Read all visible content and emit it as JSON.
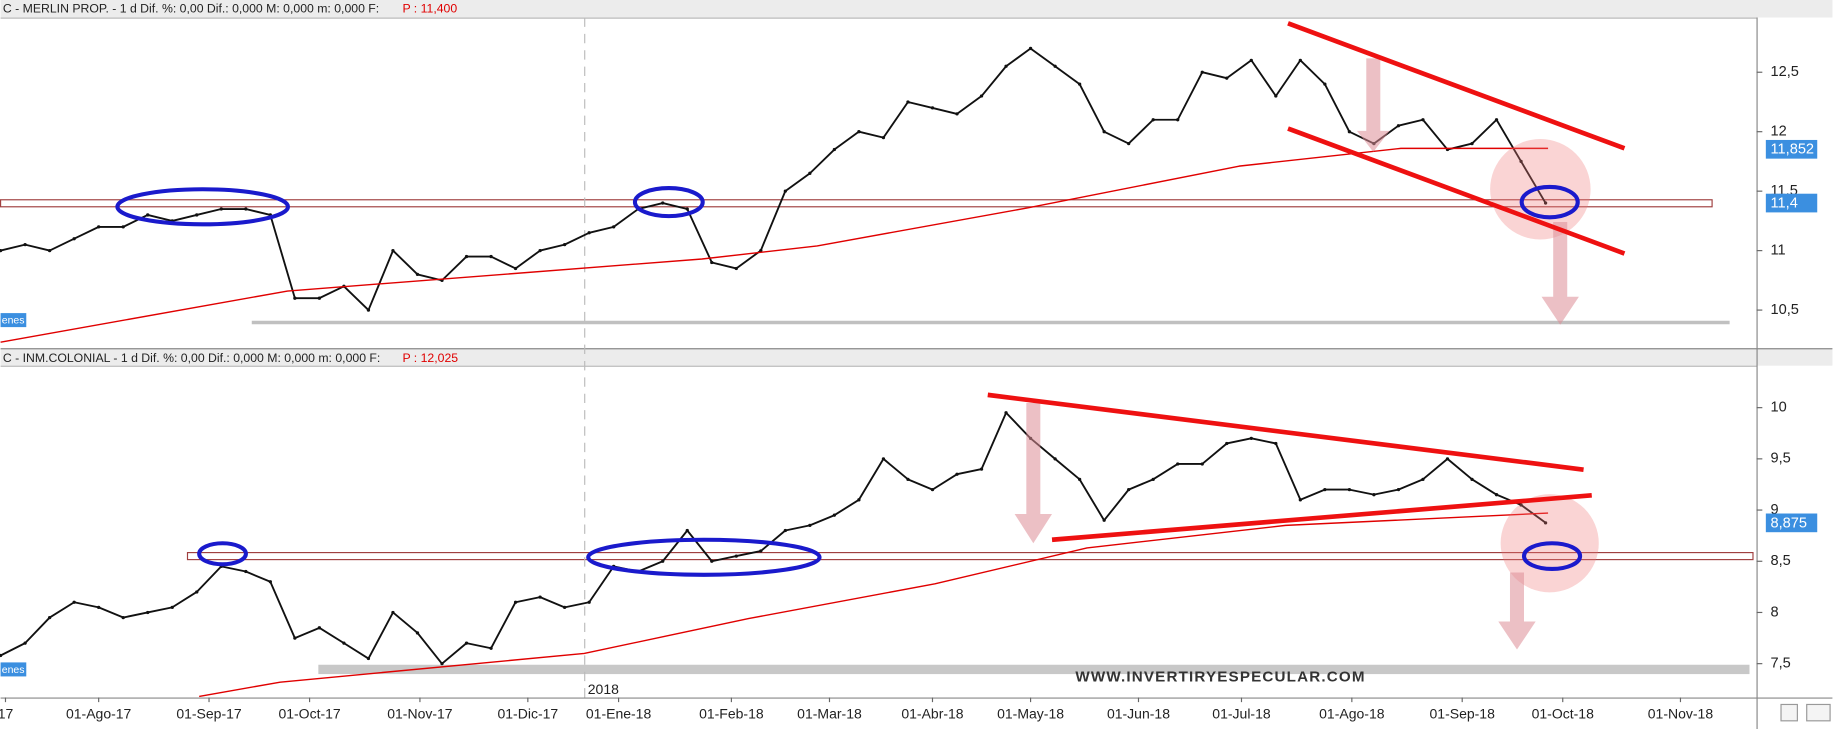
{
  "chart_data": [
    {
      "type": "line",
      "title": "C - MERLIN PROP. -  1 d Dif. %: 0,00 Dif.: 0,000 M: 0,000 m: 0,000 F:",
      "price_note": "P : 11,400",
      "side_label": "enes",
      "xlim": [
        0,
        71.6
      ],
      "ylim": [
        10.18,
        12.96
      ],
      "yticks": [
        {
          "value": 12.5,
          "label": "12,5"
        },
        12,
        {
          "value": 11.5,
          "label": "11,5"
        },
        11,
        {
          "value": 10.5,
          "label": "10,5"
        }
      ],
      "last_labels": [
        {
          "value": 11.852,
          "label": "11,852"
        },
        {
          "value": 11.4,
          "label": "11,4"
        }
      ],
      "series": [
        {
          "color": "#111111",
          "values": [
            11.0,
            11.05,
            11.0,
            11.1,
            11.2,
            11.2,
            11.3,
            11.25,
            11.3,
            11.35,
            11.35,
            11.3,
            10.6,
            10.6,
            10.7,
            10.5,
            11.0,
            10.8,
            10.75,
            10.95,
            10.95,
            10.85,
            11.0,
            11.05,
            11.15,
            11.2,
            11.35,
            11.4,
            11.35,
            10.9,
            10.85,
            11.0,
            11.5,
            11.65,
            11.85,
            12.0,
            11.95,
            12.25,
            12.2,
            12.15,
            12.3,
            12.55,
            12.7,
            12.55,
            12.4,
            12.0,
            11.9,
            12.1,
            12.1,
            12.5,
            12.45,
            12.6,
            12.3,
            12.6,
            12.4,
            12.0,
            11.9,
            12.05,
            12.1,
            11.85,
            11.9,
            12.1,
            11.75,
            11.4
          ]
        },
        {
          "color": "#e00000",
          "x": [
            0,
            11.7,
            28.6,
            33.3,
            41.9,
            50.5,
            57.1,
            63.1
          ],
          "values": [
            10.23,
            10.66,
            10.93,
            11.04,
            11.36,
            11.71,
            11.86,
            11.86
          ]
        }
      ]
    },
    {
      "type": "line",
      "title": "C - INM.COLONIAL - 1 d Dif. %: 0,00 Dif.: 0,000 M: 0,000 m: 0,000 F:",
      "price_note": "P : 12,025",
      "side_label": "enes",
      "watermark": "WWW.INVERTIRYESPECULAR.COM",
      "year_label": {
        "value": 23.8,
        "label": "2018"
      },
      "xlim": [
        0,
        71.6
      ],
      "ylim": [
        7.17,
        10.41
      ],
      "xticks": [
        {
          "value": 0.2,
          "label": "17"
        },
        {
          "value": 4.0,
          "label": "01-Ago-17"
        },
        {
          "value": 8.5,
          "label": "01-Sep-17"
        },
        {
          "value": 12.6,
          "label": "01-Oct-17"
        },
        {
          "value": 17.1,
          "label": "01-Nov-17"
        },
        {
          "value": 21.5,
          "label": "01-Dic-17"
        },
        {
          "value": 25.2,
          "label": "01-Ene-18"
        },
        {
          "value": 29.8,
          "label": "01-Feb-18"
        },
        {
          "value": 33.8,
          "label": "01-Mar-18"
        },
        {
          "value": 38.0,
          "label": "01-Abr-18"
        },
        {
          "value": 42.0,
          "label": "01-May-18"
        },
        {
          "value": 46.4,
          "label": "01-Jun-18"
        },
        {
          "value": 50.6,
          "label": "01-Jul-18"
        },
        {
          "value": 55.1,
          "label": "01-Ago-18"
        },
        {
          "value": 59.6,
          "label": "01-Sep-18"
        },
        {
          "value": 63.7,
          "label": "01-Oct-18"
        },
        {
          "value": 68.5,
          "label": "01-Nov-18"
        }
      ],
      "yticks": [
        10,
        {
          "value": 9.5,
          "label": "9,5"
        },
        9,
        {
          "value": 8.5,
          "label": "8,5"
        },
        8,
        {
          "value": 7.5,
          "label": "7,5"
        }
      ],
      "last_labels": [
        {
          "value": 8.875,
          "label": "8,875"
        }
      ],
      "series": [
        {
          "color": "#111111",
          "values": [
            7.58,
            7.7,
            7.95,
            8.1,
            8.05,
            7.95,
            8.0,
            8.05,
            8.2,
            8.45,
            8.4,
            8.3,
            7.75,
            7.85,
            7.7,
            7.55,
            8.0,
            7.8,
            7.5,
            7.7,
            7.65,
            8.1,
            8.15,
            8.05,
            8.1,
            8.45,
            8.4,
            8.5,
            8.8,
            8.5,
            8.55,
            8.6,
            8.8,
            8.85,
            8.95,
            9.1,
            9.5,
            9.3,
            9.2,
            9.35,
            9.4,
            9.95,
            9.7,
            9.5,
            9.3,
            8.9,
            9.2,
            9.3,
            9.45,
            9.45,
            9.65,
            9.7,
            9.65,
            9.1,
            9.2,
            9.2,
            9.15,
            9.2,
            9.3,
            9.5,
            9.3,
            9.15,
            9.05,
            8.875
          ]
        },
        {
          "color": "#e00000",
          "x": [
            8.1,
            11.4,
            23.8,
            30.5,
            38.1,
            44.3,
            52.4,
            63.1
          ],
          "values": [
            7.18,
            7.32,
            7.6,
            7.94,
            8.28,
            8.63,
            8.85,
            8.97
          ]
        }
      ]
    }
  ]
}
